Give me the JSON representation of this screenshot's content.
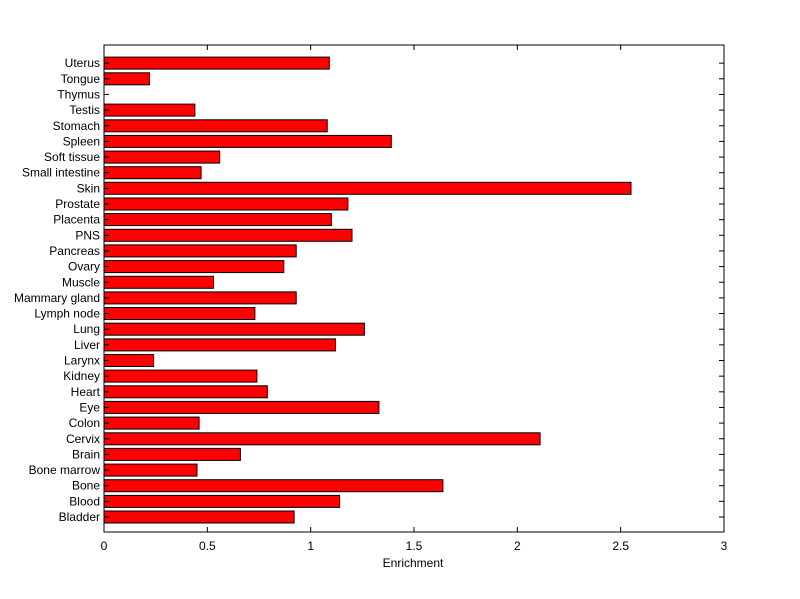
{
  "chart_data": {
    "type": "bar",
    "orientation": "horizontal",
    "title": "",
    "xlabel": "Enrichment",
    "ylabel": "",
    "xlim": [
      0,
      3
    ],
    "xticks": [
      "0",
      "0.5",
      "1",
      "1.5",
      "2",
      "2.5",
      "3"
    ],
    "grid": false,
    "bar_color": "#ff0000",
    "categories": [
      "Bladder",
      "Blood",
      "Bone",
      "Bone marrow",
      "Brain",
      "Cervix",
      "Colon",
      "Eye",
      "Heart",
      "Kidney",
      "Larynx",
      "Liver",
      "Lung",
      "Lymph node",
      "Mammary gland",
      "Muscle",
      "Ovary",
      "Pancreas",
      "PNS",
      "Placenta",
      "Prostate",
      "Skin",
      "Small intestine",
      "Soft tissue",
      "Spleen",
      "Stomach",
      "Testis",
      "Thymus",
      "Tongue",
      "Uterus"
    ],
    "values": [
      0.92,
      1.14,
      1.64,
      0.45,
      0.66,
      2.11,
      0.46,
      1.33,
      0.79,
      0.74,
      0.24,
      1.12,
      1.26,
      0.73,
      0.93,
      0.53,
      0.87,
      0.93,
      1.2,
      1.1,
      1.18,
      2.55,
      0.47,
      0.56,
      1.39,
      1.08,
      0.44,
      0.0,
      0.22,
      1.09
    ]
  }
}
